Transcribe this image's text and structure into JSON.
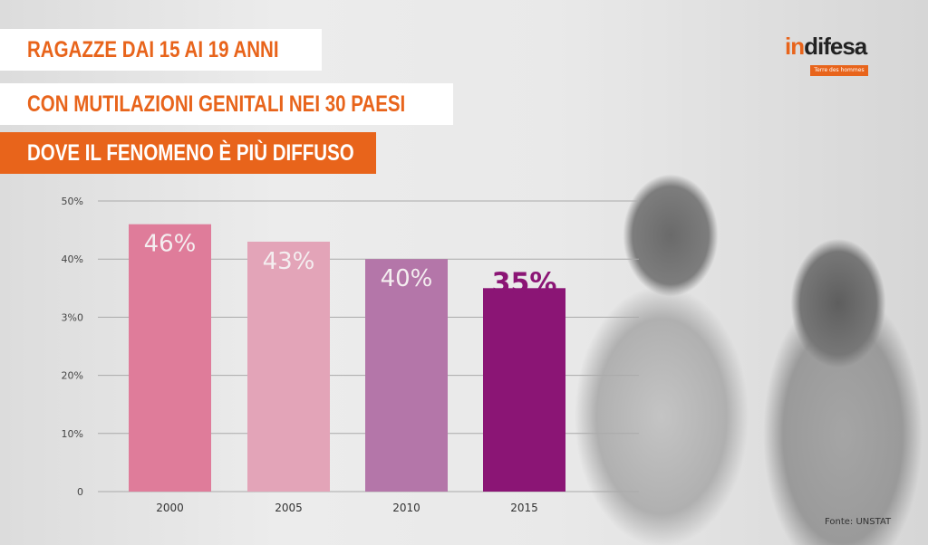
{
  "title_lines": [
    "RAGAZZE DAI 15 AI 19 ANNI",
    "CON MUTILAZIONI GENITALI NEI 30 PAESI",
    "DOVE IL FENOMENO È PIÙ DIFFUSO"
  ],
  "logo": {
    "text_orange": "in",
    "text_dark": "difesa",
    "sub": "Terre des hommes"
  },
  "source": "Fonte: UNSTAT",
  "colors": {
    "accent": "#e8641b"
  },
  "chart_data": {
    "type": "bar",
    "categories": [
      "2000",
      "2005",
      "2010",
      "2015"
    ],
    "values": [
      46,
      43,
      40,
      35
    ],
    "data_labels": [
      "46%",
      "43%",
      "40%",
      "35%"
    ],
    "bar_colors": [
      "#df7c9a",
      "#e3a4b8",
      "#b476a9",
      "#8b1575"
    ],
    "ytick_labels": [
      "0",
      "10%",
      "20%",
      "3%0",
      "40%",
      "50%"
    ],
    "yticks": [
      0,
      10,
      20,
      30,
      40,
      50
    ],
    "ylim": [
      0,
      50
    ],
    "grid": true,
    "xlabel": "",
    "ylabel": ""
  }
}
